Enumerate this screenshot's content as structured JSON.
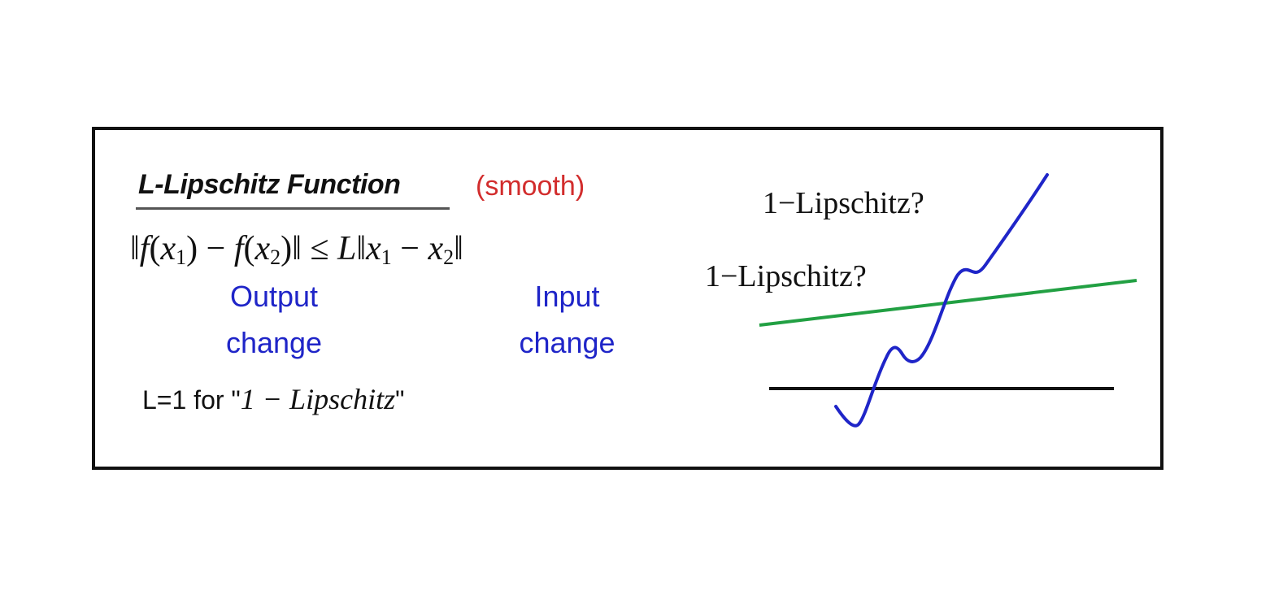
{
  "title": "L-Lipschitz Function",
  "smooth_label": "(smooth)",
  "formula": {
    "norm_left": "‖",
    "f1": "f",
    "x1a": "x",
    "sub1a": "1",
    "minus1": " − ",
    "f2": "f",
    "x2a": "x",
    "sub2a": "2",
    "norm_mid": ")‖ ≤ ",
    "L": "L",
    "norm_right_open": "‖",
    "x1b": "x",
    "sub1b": "1",
    "minus2": " − ",
    "x2b": "x",
    "sub2b": "2",
    "norm_end": "‖"
  },
  "output_change": [
    "Output",
    "change"
  ],
  "input_change": [
    "Input",
    "change"
  ],
  "l_note": {
    "prefix": "L=1 for \"",
    "math": "1 − Lipschitz",
    "suffix": "\""
  },
  "plot_labels": {
    "blue_curve_question": "1−Lipschitz?",
    "green_line_question": "1−Lipschitz?"
  },
  "colors": {
    "blue_curve": "#1f25c8",
    "green_line": "#22a043",
    "black_line": "#111111",
    "smooth_text": "#d22d2d",
    "annotation_text": "#1f25c8"
  }
}
